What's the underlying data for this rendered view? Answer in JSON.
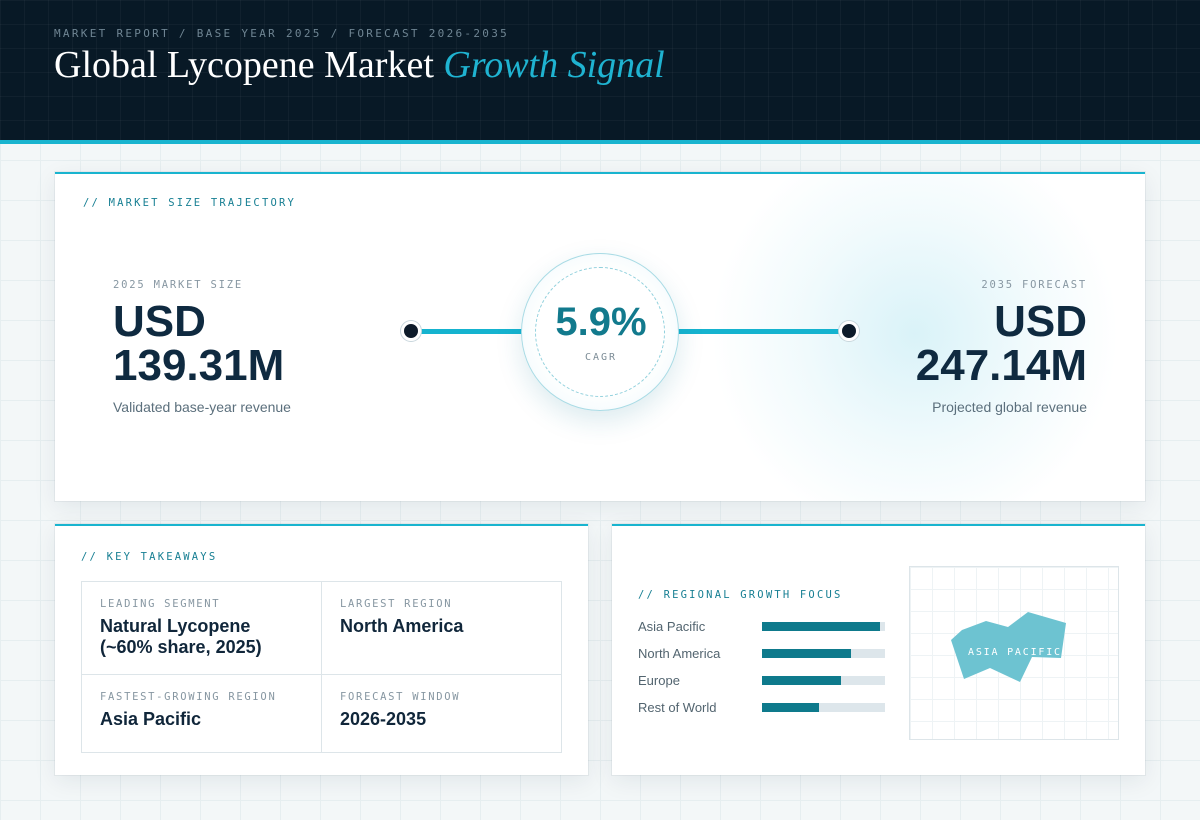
{
  "header": {
    "breadcrumb": "MARKET REPORT / BASE YEAR 2025 / FORECAST 2026-2035",
    "title_main": "Global Lycopene Market",
    "title_accent": "Growth Signal"
  },
  "trajectory": {
    "section_label": "// MARKET SIZE TRAJECTORY",
    "start": {
      "label": "2025 MARKET SIZE",
      "value_line1": "USD",
      "value_line2": "139.31M",
      "caption": "Validated base-year revenue"
    },
    "cagr": {
      "value": "5.9%",
      "label": "CAGR"
    },
    "end": {
      "label": "2035 FORECAST",
      "value_line1": "USD",
      "value_line2": "247.14M",
      "caption": "Projected global revenue"
    }
  },
  "takeaways": {
    "section_label": "// KEY TAKEAWAYS",
    "cells": [
      {
        "label": "LEADING SEGMENT",
        "value": "Natural Lycopene (~60% share, 2025)"
      },
      {
        "label": "LARGEST REGION",
        "value": "North America"
      },
      {
        "label": "FASTEST-GROWING REGION",
        "value": "Asia Pacific"
      },
      {
        "label": "FORECAST WINDOW",
        "value": "2026-2035"
      }
    ]
  },
  "regional": {
    "section_label": "// REGIONAL GROWTH FOCUS",
    "bars": [
      {
        "name": "Asia Pacific",
        "level": 0.96
      },
      {
        "name": "North America",
        "level": 0.72
      },
      {
        "name": "Europe",
        "level": 0.64
      },
      {
        "name": "Rest of World",
        "level": 0.46
      }
    ],
    "map_label": "ASIA PACIFIC",
    "map_color": "#6dc3d1"
  },
  "colors": {
    "accent": "#19b4cf",
    "navy": "#081926",
    "teal": "#0e7a8c"
  }
}
